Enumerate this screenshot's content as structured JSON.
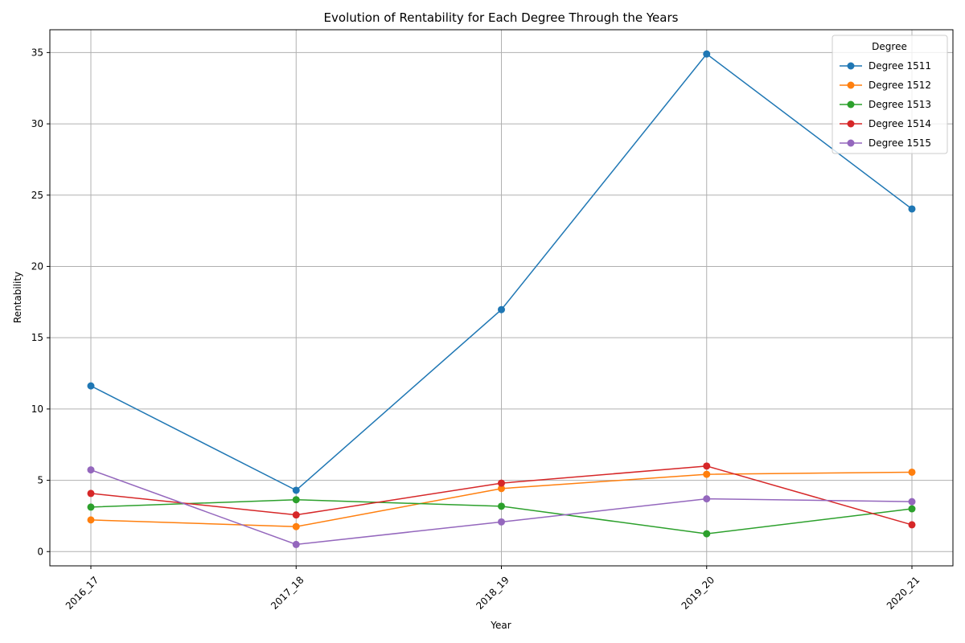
{
  "chart_data": {
    "type": "line",
    "title": "Evolution of Rentability for Each Degree Through the Years",
    "xlabel": "Year",
    "ylabel": "Rentability",
    "categories": [
      "2016_17",
      "2017_18",
      "2018_19",
      "2019_20",
      "2020_21"
    ],
    "ylim": [
      -1.0,
      36.6
    ],
    "yticks": [
      0,
      5,
      10,
      15,
      20,
      25,
      30,
      35
    ],
    "grid": true,
    "legend_title": "Degree",
    "legend_position": "top-right",
    "series": [
      {
        "name": "Degree 1511",
        "color": "#1f77b4",
        "values": [
          11.62,
          4.3,
          16.97,
          34.9,
          24.03
        ]
      },
      {
        "name": "Degree 1512",
        "color": "#ff7f0e",
        "values": [
          2.22,
          1.75,
          4.42,
          5.42,
          5.57
        ]
      },
      {
        "name": "Degree 1513",
        "color": "#2ca02c",
        "values": [
          3.12,
          3.64,
          3.18,
          1.25,
          3.0
        ]
      },
      {
        "name": "Degree 1514",
        "color": "#d62728",
        "values": [
          4.08,
          2.57,
          4.8,
          6.0,
          1.88
        ]
      },
      {
        "name": "Degree 1515",
        "color": "#9467bd",
        "values": [
          5.73,
          0.5,
          2.08,
          3.7,
          3.5
        ]
      }
    ]
  }
}
